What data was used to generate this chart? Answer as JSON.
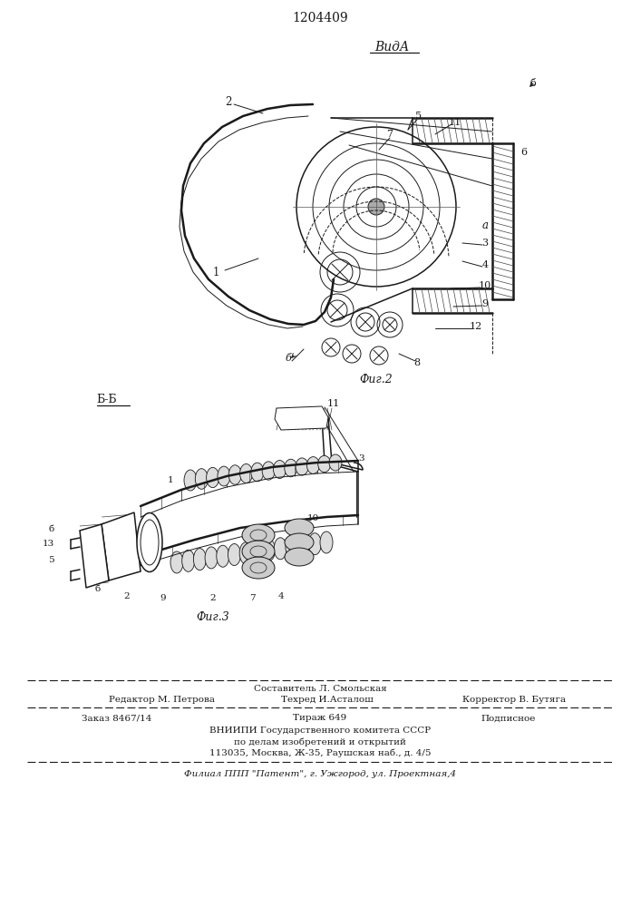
{
  "title_number": "1204409",
  "view_label": "ВидА",
  "fig2_label": "Фиг.2",
  "fig3_label": "Фиг.3",
  "section_label": "Б-Б",
  "footer_line1_mid": "Составитель Л. Смольская",
  "footer_line2_left": "Редактор М. Петрова",
  "footer_line2_mid": "Техред И.Асталош",
  "footer_line2_right": "Корректор В. Бутяга",
  "footer_line3_left": "Заказ 8467/14",
  "footer_line3_mid": "Тираж 649",
  "footer_line3_right": "Подписное",
  "footer_line4": "ВНИИПИ Государственного комитета СССР",
  "footer_line5": "по делам изобретений и открытий",
  "footer_line6": "113035, Москва, Ж-35, Раушская наб., д. 4/5",
  "footer_last": "Филиал ППП \"Патент\", г. Ужгород, ул. Проектная,4",
  "line_color": "#1a1a1a",
  "fig_width": 7.07,
  "fig_height": 10.0
}
